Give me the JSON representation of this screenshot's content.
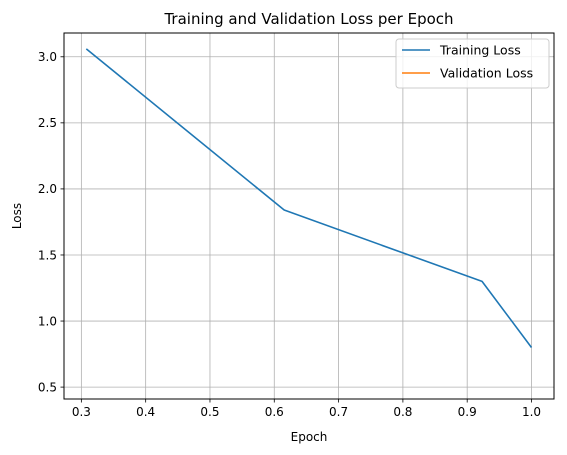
{
  "chart_data": {
    "type": "line",
    "title": "Training and Validation Loss per Epoch",
    "xlabel": "Epoch",
    "ylabel": "Loss",
    "xlim": [
      0.273,
      1.035
    ],
    "ylim": [
      0.41,
      3.18
    ],
    "xticks": [
      0.3,
      0.4,
      0.5,
      0.6,
      0.7,
      0.8,
      0.9,
      1.0
    ],
    "xtick_labels": [
      "0.3",
      "0.4",
      "0.5",
      "0.6",
      "0.7",
      "0.8",
      "0.9",
      "1.0"
    ],
    "yticks": [
      0.5,
      1.0,
      1.5,
      2.0,
      2.5,
      3.0
    ],
    "ytick_labels": [
      "0.5",
      "1.0",
      "1.5",
      "2.0",
      "2.5",
      "3.0"
    ],
    "grid": true,
    "legend_position": "top-right",
    "series": [
      {
        "name": "Training Loss",
        "color": "#1f77b4",
        "x": [
          0.3077,
          0.6154,
          0.9231,
          1.0
        ],
        "y": [
          3.06,
          1.84,
          1.3,
          0.8
        ]
      },
      {
        "name": "Validation Loss",
        "color": "#ff7f0e",
        "x": [],
        "y": []
      }
    ]
  }
}
